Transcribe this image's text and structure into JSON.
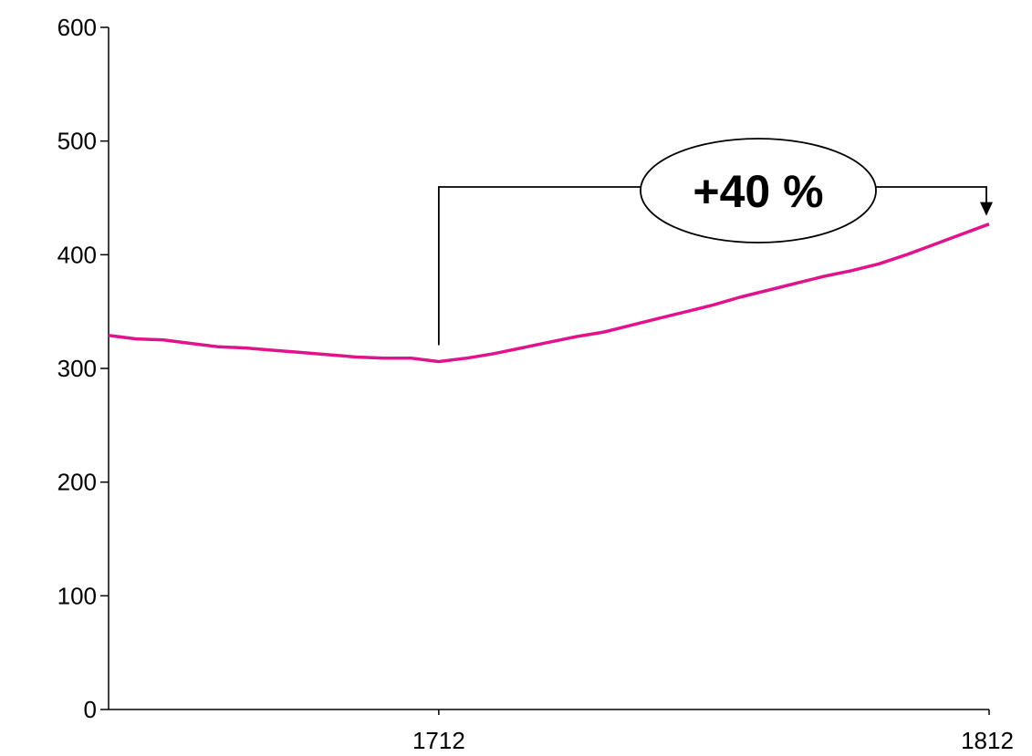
{
  "chart_data": {
    "type": "line",
    "title": "",
    "xlabel": "",
    "ylabel": "",
    "xlim": [
      1652,
      1812
    ],
    "ylim": [
      0,
      600
    ],
    "y_ticks": [
      0,
      100,
      200,
      300,
      400,
      500,
      600
    ],
    "x_ticks": [
      1712,
      1812
    ],
    "grid": false,
    "line_color": "#e0138c",
    "series": [
      {
        "x": [
          1652,
          1657,
          1662,
          1667,
          1672,
          1677,
          1682,
          1687,
          1692,
          1697,
          1702,
          1707,
          1712,
          1717,
          1722,
          1727,
          1732,
          1737,
          1742,
          1747,
          1752,
          1757,
          1762,
          1767,
          1772,
          1777,
          1782,
          1787,
          1792,
          1797,
          1802,
          1807,
          1812
        ],
        "y": [
          329,
          326,
          325,
          322,
          319,
          318,
          316,
          314,
          312,
          310,
          309,
          309,
          306,
          309,
          313,
          318,
          323,
          328,
          332,
          338,
          344,
          350,
          356,
          363,
          369,
          375,
          381,
          386,
          392,
          400,
          409,
          418,
          427
        ]
      }
    ],
    "annotation": {
      "label": "+40 %",
      "from_x": 1712,
      "to_x": 1812
    }
  }
}
